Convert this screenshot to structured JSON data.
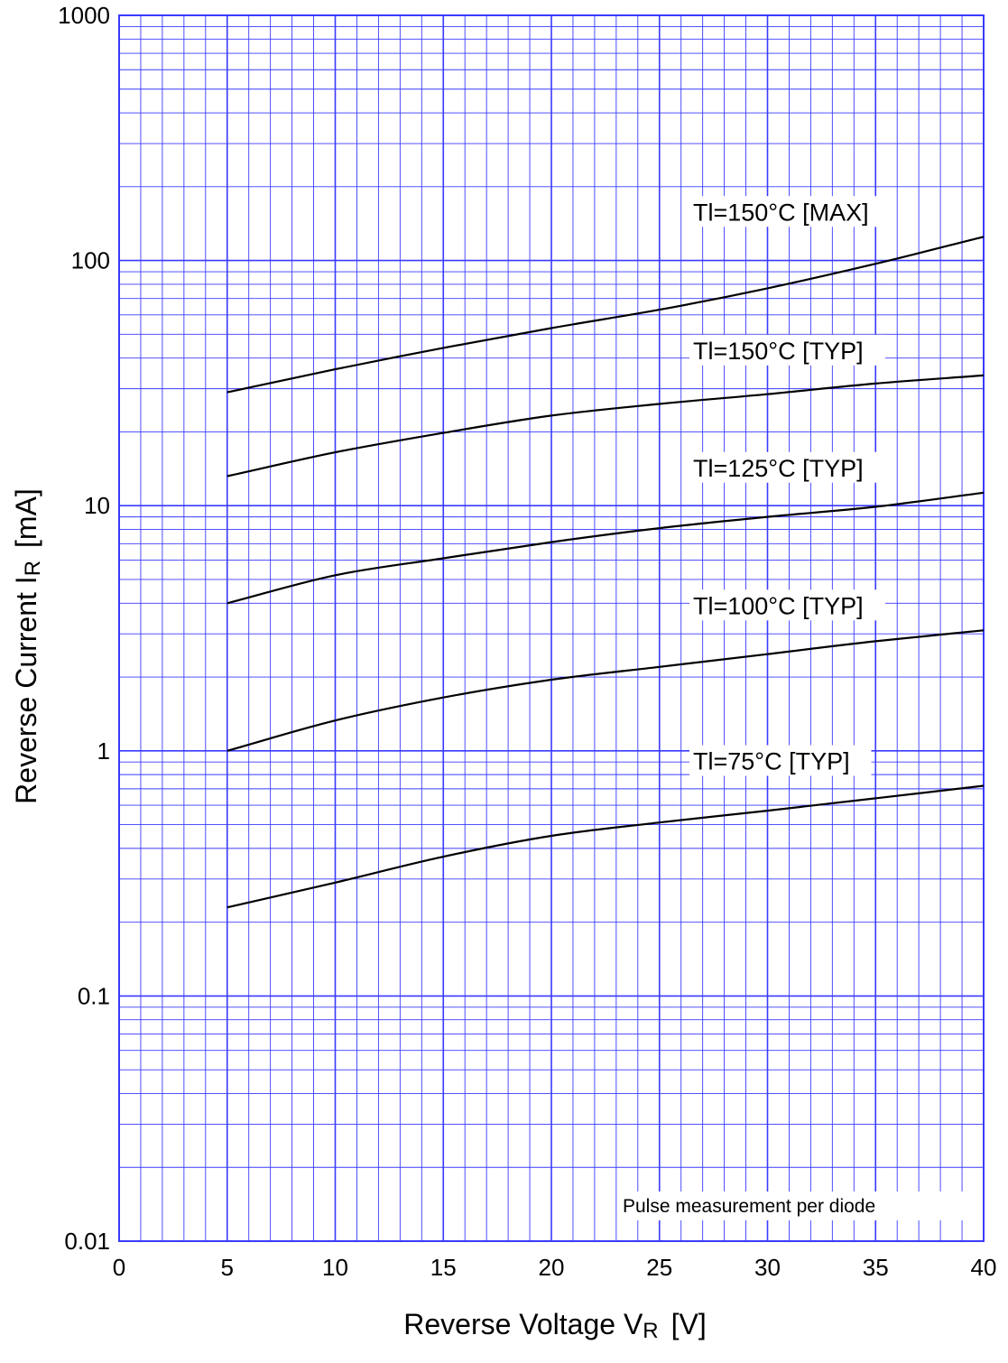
{
  "chart_data": {
    "type": "line",
    "xlabel": "Reverse Voltage V",
    "xlabel_sub": "R",
    "xlabel_unit": "[V]",
    "ylabel": "Reverse Current I",
    "ylabel_sub": "R",
    "ylabel_unit": "[mA]",
    "xlim": [
      0,
      40
    ],
    "ylim": [
      0.01,
      1000
    ],
    "y_scale": "log",
    "grid": true,
    "grid_color": "#3a3aff",
    "line_color": "#000000",
    "x_ticks": [
      "0",
      "5",
      "10",
      "15",
      "20",
      "25",
      "30",
      "35",
      "40"
    ],
    "y_ticks": [
      "0.01",
      "0.1",
      "1",
      "10",
      "100",
      "1000"
    ],
    "note": "Pulse measurement per diode",
    "series": [
      {
        "name": "Tl=150°C [MAX]",
        "x": [
          5,
          10,
          15,
          20,
          25,
          30,
          35,
          40
        ],
        "y": [
          29,
          36,
          44,
          53,
          63,
          77,
          97,
          125
        ]
      },
      {
        "name": "Tl=150°C [TYP]",
        "x": [
          5,
          10,
          15,
          20,
          25,
          30,
          35,
          40
        ],
        "y": [
          13.2,
          16.5,
          19.8,
          23.3,
          26,
          28.5,
          31.5,
          34
        ]
      },
      {
        "name": "Tl=125°C [TYP]",
        "x": [
          5,
          10,
          15,
          20,
          25,
          30,
          35,
          40
        ],
        "y": [
          4.0,
          5.2,
          6.1,
          7.1,
          8.1,
          9.0,
          9.9,
          11.3
        ]
      },
      {
        "name": "Tl=100°C [TYP]",
        "x": [
          5,
          10,
          15,
          20,
          25,
          30,
          35,
          40
        ],
        "y": [
          1.0,
          1.33,
          1.65,
          1.95,
          2.2,
          2.48,
          2.8,
          3.1
        ]
      },
      {
        "name": "Tl=75°C [TYP]",
        "x": [
          5,
          10,
          15,
          20,
          25,
          30,
          35,
          40
        ],
        "y": [
          0.23,
          0.29,
          0.37,
          0.45,
          0.51,
          0.57,
          0.64,
          0.72
        ]
      }
    ]
  }
}
